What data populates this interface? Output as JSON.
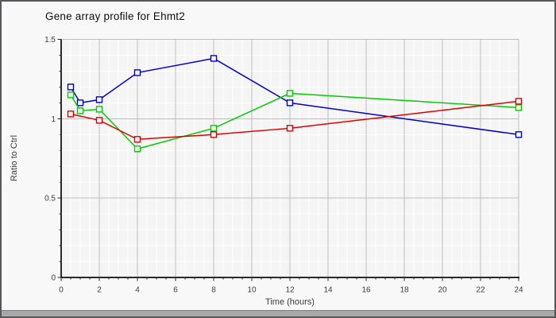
{
  "title": "Gene array profile for Ehmt2",
  "colors": {
    "background": "#f8f8f8",
    "plot_background": "#f5f5f5",
    "grid_minor": "#ffffff",
    "grid_major": "#bdbdbd",
    "axis": "#2b2b2b",
    "tick_label": "#3c3c3c",
    "marker_fill": "#fdfdfd",
    "window_border": "#58585c",
    "bottom_bar": "#a8a8a8"
  },
  "chart_data": {
    "type": "line",
    "title": "Gene array profile for Ehmt2",
    "xlabel": "Time (hours)",
    "ylabel": "Ratio to Ctrl",
    "xlim": [
      0,
      24
    ],
    "ylim": [
      0,
      1.5
    ],
    "x_major_ticks": [
      0,
      2,
      4,
      6,
      8,
      10,
      12,
      14,
      16,
      18,
      20,
      22,
      24
    ],
    "y_major_ticks": [
      0,
      0.5,
      1,
      1.5
    ],
    "x_minor_step": 0.5,
    "y_minor_step": 0.1,
    "grid": true,
    "legend": "none",
    "marker": "open-square",
    "series": [
      {
        "name": "series-blue",
        "color": "#0000cc",
        "x": [
          0.5,
          1,
          2,
          4,
          8,
          12,
          24
        ],
        "values": [
          1.2,
          1.1,
          1.12,
          1.29,
          1.38,
          1.1,
          0.9
        ]
      },
      {
        "name": "series-green",
        "color": "#00cc00",
        "x": [
          0.5,
          1,
          2,
          4,
          8,
          12,
          24
        ],
        "values": [
          1.15,
          1.05,
          1.06,
          0.81,
          0.94,
          1.16,
          1.07
        ]
      },
      {
        "name": "series-red",
        "color": "#dd0000",
        "x": [
          0.5,
          2,
          4,
          8,
          12,
          24
        ],
        "values": [
          1.03,
          0.99,
          0.87,
          0.9,
          0.94,
          1.11
        ]
      }
    ]
  }
}
